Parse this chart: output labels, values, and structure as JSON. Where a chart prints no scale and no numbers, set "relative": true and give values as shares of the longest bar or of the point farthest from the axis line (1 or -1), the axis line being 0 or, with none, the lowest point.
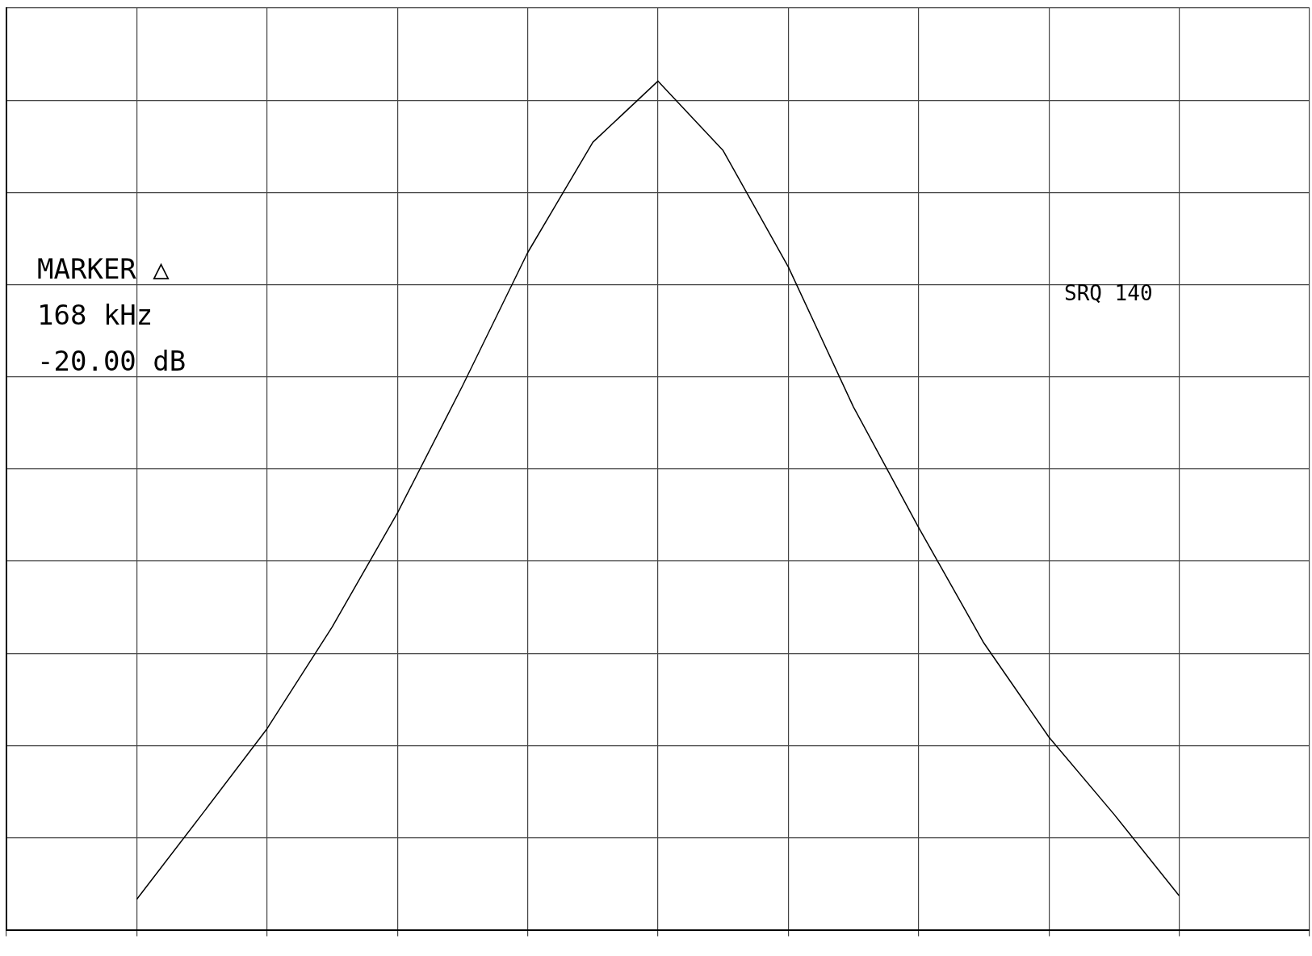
{
  "chart_data": {
    "type": "line",
    "relative": true,
    "grid": true,
    "legend": false,
    "marker": "none",
    "line_style": "solid",
    "categories": [
      null,
      null,
      null,
      null,
      null,
      null,
      null,
      null,
      null,
      null,
      null,
      null,
      null,
      null,
      null,
      null,
      null,
      null,
      null,
      null,
      null
    ],
    "series": [
      {
        "color": "#000000",
        "values": [
          null,
          null,
          0.036,
          0.136,
          0.237,
          0.357,
          0.491,
          0.641,
          0.798,
          0.928,
          1.0,
          0.918,
          0.781,
          0.616,
          0.474,
          0.338,
          0.227,
          0.136,
          0.04,
          null,
          null
        ]
      }
    ],
    "annotations": [
      "MARKER △",
      "168 kHz",
      "-20.00 dB",
      "SRQ 140"
    ]
  }
}
